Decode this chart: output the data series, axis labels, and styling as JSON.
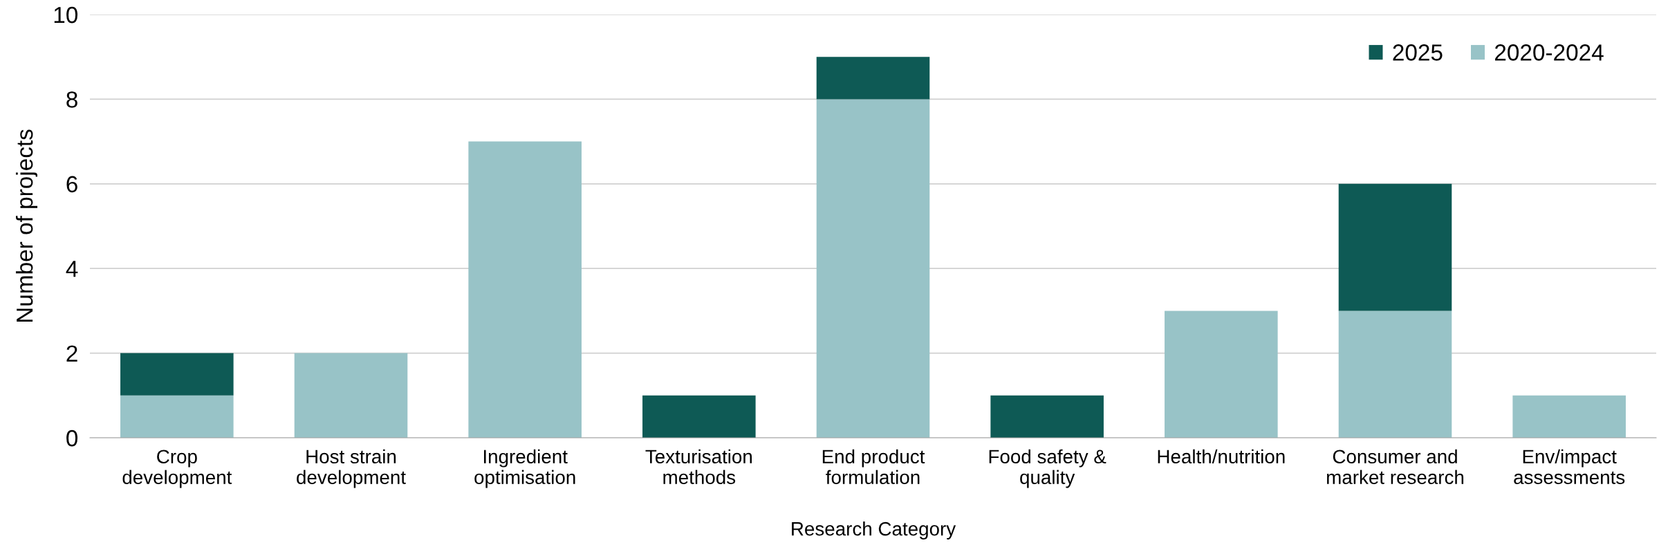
{
  "chart_data": {
    "type": "bar",
    "stacked": true,
    "xlabel": "Research Category",
    "ylabel": "Number of projects",
    "categories": [
      "Crop\ndevelopment",
      "Host strain\ndevelopment",
      "Ingredient\noptimisation",
      "Texturisation\nmethods",
      "End product\nformulation",
      "Food safety &\nquality",
      "Health/nutrition",
      "Consumer and\nmarket research",
      "Env/impact\nassessments"
    ],
    "series": [
      {
        "name": "2020-2024",
        "color": "#98c3c7",
        "values": [
          1,
          2,
          7,
          0,
          8,
          0,
          3,
          3,
          1
        ]
      },
      {
        "name": "2025",
        "color": "#0e5a55",
        "values": [
          1,
          0,
          0,
          1,
          1,
          1,
          0,
          3,
          0
        ]
      }
    ],
    "ylim": [
      0,
      10
    ],
    "yticks": [
      0,
      2,
      4,
      6,
      8,
      10
    ],
    "grid": "y",
    "legend": "top right"
  }
}
